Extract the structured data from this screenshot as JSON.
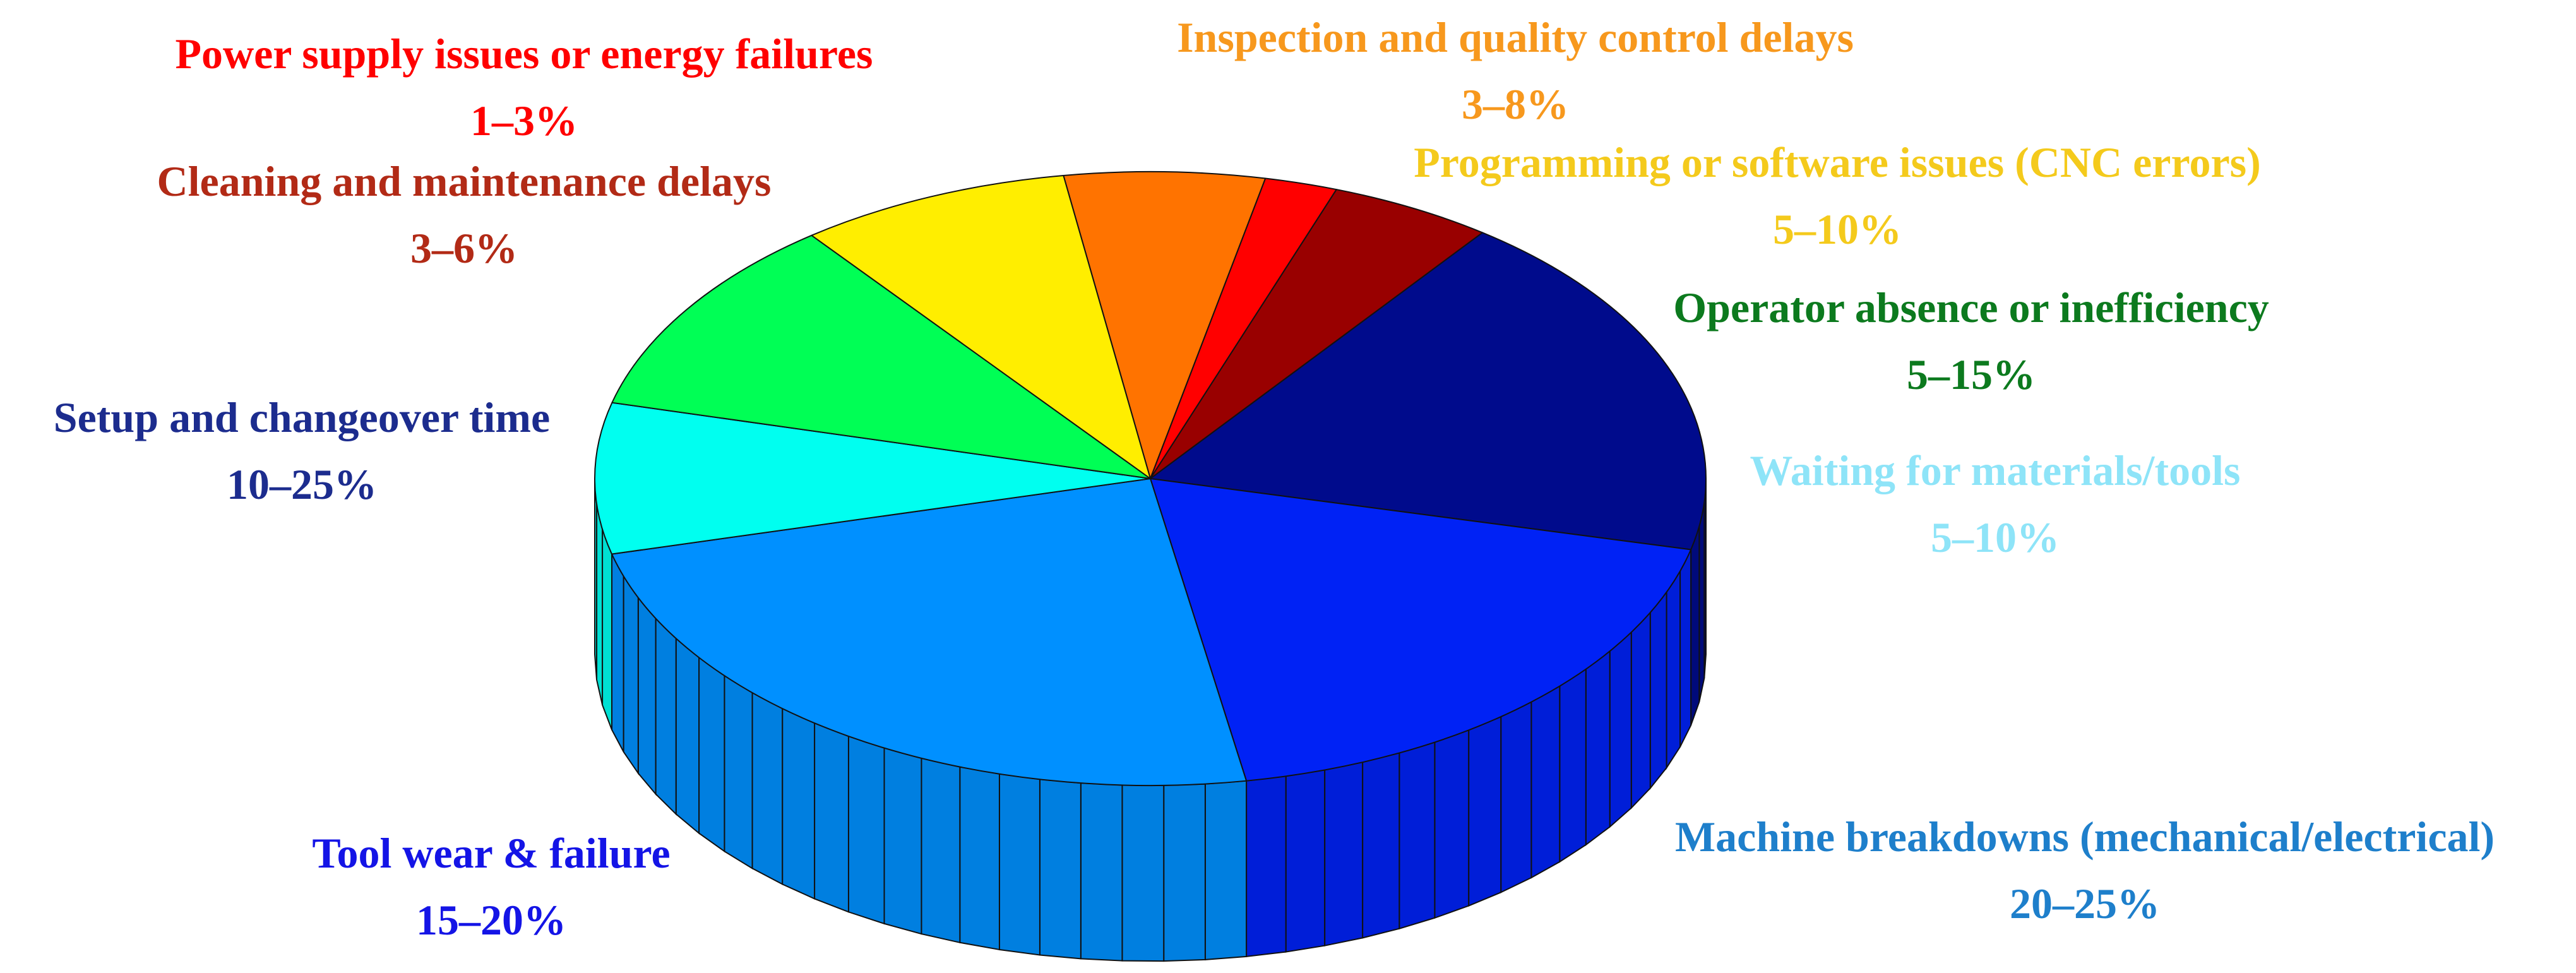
{
  "chart_data": {
    "type": "pie",
    "three_d": true,
    "legend": "none",
    "slices": [
      {
        "name": "Inspection and quality control delays",
        "range": "3–8%",
        "value": 5.5,
        "color": "#FF7300",
        "label_color": "#F7981D"
      },
      {
        "name": "Power supply issues or energy failures",
        "range": "1–3%",
        "value": 2.0,
        "color": "#FF0000",
        "label_color": "#FF0000"
      },
      {
        "name": "Cleaning and maintenance delays",
        "range": "3–6%",
        "value": 4.5,
        "color": "#990000",
        "label_color": "#B22A16"
      },
      {
        "name": "Setup and changeover time",
        "range": "10–25%",
        "value": 17.5,
        "color": "#000B8C",
        "label_color": "#1C2C8E"
      },
      {
        "name": "Tool wear & failure",
        "range": "15–20%",
        "value": 17.5,
        "color": "#0022F5",
        "label_color": "#1414E6"
      },
      {
        "name": "Machine breakdowns (mechanical/electrical)",
        "range": "20–25%",
        "value": 22.5,
        "color": "#0090FF",
        "label_color": "#1E7FCB"
      },
      {
        "name": "Waiting for materials/tools",
        "range": "5–10%",
        "value": 7.5,
        "color": "#00FFF0",
        "label_color": "#8EE4F8"
      },
      {
        "name": "Operator absence or inefficiency",
        "range": "5–15%",
        "value": 10.0,
        "color": "#00FF55",
        "label_color": "#0C7A1E"
      },
      {
        "name": "Programming or software issues (CNC errors)",
        "range": "5–10%",
        "value": 7.5,
        "color": "#FFEE00",
        "label_color": "#F4CA1C"
      }
    ]
  }
}
